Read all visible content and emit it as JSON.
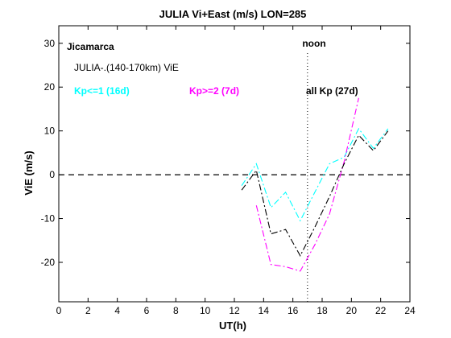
{
  "chart_data": {
    "type": "line",
    "title": "JULIA Vi+East (m/s) LON=285",
    "xlabel": "UT(h)",
    "ylabel": "ViE (m/s)",
    "xlim": [
      0,
      24
    ],
    "ylim": [
      -29,
      34
    ],
    "xticks": [
      0,
      2,
      4,
      6,
      8,
      10,
      12,
      14,
      16,
      18,
      20,
      22,
      24
    ],
    "yticks": [
      -20,
      -10,
      0,
      10,
      20,
      30
    ],
    "annotations": {
      "site": "Jicamarca",
      "subtitle": "JULIA-.(140-170km) ViE",
      "noon": "noon",
      "noon_x": 17
    },
    "series": [
      {
        "name": "Kp<=1 (16d)",
        "color": "#00ffff",
        "dash": "dashdot",
        "x": [
          12.5,
          13.5,
          14.5,
          15.5,
          16.5,
          17.5,
          18.5,
          19.5,
          20.5,
          21.5,
          22.5
        ],
        "y": [
          -2.5,
          2.5,
          -7.5,
          -4,
          -10.5,
          -4,
          2.5,
          4,
          10.5,
          6,
          10.5
        ]
      },
      {
        "name": "Kp>=2 (7d)",
        "color": "#ff00ff",
        "dash": "dashdot",
        "x": [
          13.5,
          14.5,
          15.5,
          16.5,
          17.5,
          18.5,
          19.5,
          20.5
        ],
        "y": [
          -7,
          -20.5,
          -21,
          -22,
          -16,
          -9,
          3,
          17.5
        ]
      },
      {
        "name": "all Kp (27d)",
        "color": "#000000",
        "dash": "dashdot",
        "x": [
          12.5,
          13.5,
          14.5,
          15.5,
          16.5,
          17.5,
          18.5,
          19.5,
          20.5,
          21.5,
          22.5
        ],
        "y": [
          -3.5,
          1,
          -13.5,
          -12.5,
          -18.5,
          -12,
          -5,
          2.5,
          9,
          5.5,
          10
        ]
      }
    ],
    "reference_line": {
      "y": 0,
      "style": "dashed",
      "color": "#000000"
    }
  }
}
